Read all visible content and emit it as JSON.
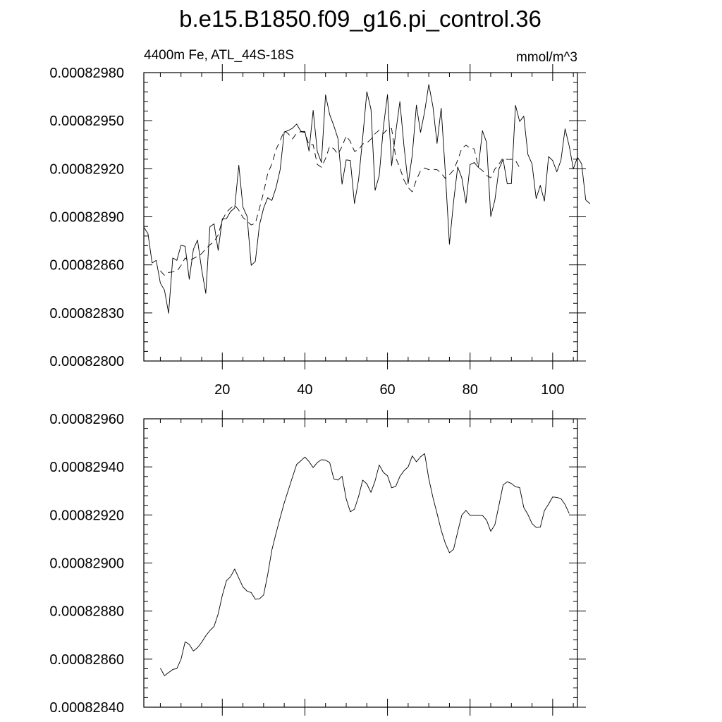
{
  "title": "b.e15.B1850.f09_g16.pi_control.36",
  "chart_data": [
    {
      "type": "line",
      "left_label": "4400m Fe, ATL_44S-18S",
      "units": "mmol/m^3",
      "xlim": [
        1,
        106
      ],
      "ylim": [
        0.000828,
        0.0008298
      ],
      "x_ticks": [
        20,
        40,
        60,
        80,
        100
      ],
      "x_tick_labels": [
        "20",
        "40",
        "60",
        "80",
        "100"
      ],
      "y_ticks": [
        0.000828,
        0.0008283,
        0.0008286,
        0.0008289,
        0.0008292,
        0.0008295,
        0.0008298
      ],
      "y_tick_labels": [
        "0.00082800",
        "0.00082830",
        "0.00082860",
        "0.00082890",
        "0.00082920",
        "0.00082950",
        "0.00082980"
      ],
      "grid": false,
      "series": [
        {
          "style": "solid",
          "x_start": 1,
          "values": [
            0.000828835,
            0.000828795,
            0.000828612,
            0.000828628,
            0.000828486,
            0.000828442,
            0.000828298,
            0.000828643,
            0.000828628,
            0.000828722,
            0.000828716,
            0.00082851,
            0.000828696,
            0.000828755,
            0.000828572,
            0.000828422,
            0.000828838,
            0.000828856,
            0.00082869,
            0.000828888,
            0.000828888,
            0.000828933,
            0.000828955,
            0.000829222,
            0.00082896,
            0.000828903,
            0.000828597,
            0.000828622,
            0.000828849,
            0.000828954,
            0.000829019,
            0.000829002,
            0.000829081,
            0.000829193,
            0.000829429,
            0.000829439,
            0.000829453,
            0.000829479,
            0.000829434,
            0.000829433,
            0.00082931,
            0.000829565,
            0.000829308,
            0.000829239,
            0.000829661,
            0.000829538,
            0.000829469,
            0.000829389,
            0.000829104,
            0.000829255,
            0.000829252,
            0.000828983,
            0.000829132,
            0.000829395,
            0.000829681,
            0.000829571,
            0.000829065,
            0.000829158,
            0.000829458,
            0.000829663,
            0.000829219,
            0.000829428,
            0.000829619,
            0.00082934,
            0.000829107,
            0.000829284,
            0.000829597,
            0.000829427,
            0.000829557,
            0.000829726,
            0.000829589,
            0.000829358,
            0.000829578,
            0.000829177,
            0.000828729,
            0.000828994,
            0.000829211,
            0.000829143,
            0.000828985,
            0.000829226,
            0.000829239,
            0.000829208,
            0.000829437,
            0.000829364,
            0.000828902,
            0.000829004,
            0.000829199,
            0.000829259,
            0.000829106,
            0.000829107,
            0.000829596,
            0.000829495,
            0.000829528,
            0.000829289,
            0.000829231,
            0.000829014,
            0.000829096,
            0.000828998,
            0.000829276,
            0.000829251,
            0.000829181,
            0.000829253,
            0.000829449,
            0.000829342,
            0.000829199,
            0.000829272,
            0.000829231,
            0.000829006,
            0.000828982
          ]
        },
        {
          "style": "dashed",
          "x_start": 5,
          "values": [
            0.000828563,
            0.000828535,
            0.000828553,
            0.000828556,
            0.00082856,
            0.000828596,
            0.000828643,
            0.000828624,
            0.00082864,
            0.000828653,
            0.00082867,
            0.0008287,
            0.000828725,
            0.000828745,
            0.000828787,
            0.000828878,
            0.000828929,
            0.000828954,
            0.000828973,
            0.000828941,
            0.000828896,
            0.000828873,
            0.000828849,
            0.00082886,
            0.000828953,
            0.000829052,
            0.000829171,
            0.000829229,
            0.000829318,
            0.000829376,
            0.000829436,
            0.000829418,
            0.000829386,
            0.000829422,
            0.000829431,
            0.000829427,
            0.000829347,
            0.00082935,
            0.000829227,
            0.000829209,
            0.000829264,
            0.00082934,
            0.000829325,
            0.00082929,
            0.000829339,
            0.000829405,
            0.00082937,
            0.000829309,
            0.000829317,
            0.000829355,
            0.000829361,
            0.000829385,
            0.000829419,
            0.000829441,
            0.000829419,
            0.000829447,
            0.000829451,
            0.000829268,
            0.000829205,
            0.000829129,
            0.000829082,
            0.000829056,
            0.000829131,
            0.000829187,
            0.000829205,
            0.000829194,
            0.000829197,
            0.000829194,
            0.000829173,
            0.000829139,
            0.000829163,
            0.000829191,
            0.000829254,
            0.000829328,
            0.000829347,
            0.000829329,
            0.000829324,
            0.000829209,
            0.000829188,
            0.000829158,
            0.000829144,
            0.000829198,
            0.00082923,
            0.000829268,
            0.000829258,
            0.000829259,
            0.000829252,
            0.000829206
          ]
        }
      ]
    },
    {
      "type": "line",
      "xlim": [
        1,
        106
      ],
      "ylim": [
        0.0008284,
        0.0008296
      ],
      "x_ticks": [
        20,
        40,
        60,
        80,
        100
      ],
      "y_ticks": [
        0.0008284,
        0.0008286,
        0.0008288,
        0.000829,
        0.0008292,
        0.0008294,
        0.0008296
      ],
      "y_tick_labels": [
        "0.00082840",
        "0.00082860",
        "0.00082880",
        "0.00082900",
        "0.00082920",
        "0.00082940",
        "0.00082960"
      ],
      "grid": false,
      "series": [
        {
          "style": "solid",
          "x_start": 5,
          "values": [
            0.000828562,
            0.000828531,
            0.000828544,
            0.000828557,
            0.000828561,
            0.000828599,
            0.000828672,
            0.000828661,
            0.000828634,
            0.000828648,
            0.00082867,
            0.000828697,
            0.000828719,
            0.000828736,
            0.000828788,
            0.000828865,
            0.000828926,
            0.000828943,
            0.000828975,
            0.000828937,
            0.0008289,
            0.000828883,
            0.000828877,
            0.000828849,
            0.000828851,
            0.000828867,
            0.000828952,
            0.000829054,
            0.000829123,
            0.000829188,
            0.00082925,
            0.000829304,
            0.000829358,
            0.00082941,
            0.000829425,
            0.000829441,
            0.000829422,
            0.000829397,
            0.000829418,
            0.00082943,
            0.000829428,
            0.000829418,
            0.00082935,
            0.000829345,
            0.000829361,
            0.000829267,
            0.000829213,
            0.000829224,
            0.000829277,
            0.000829345,
            0.000829329,
            0.000829294,
            0.000829342,
            0.000829408,
            0.000829377,
            0.000829363,
            0.000829313,
            0.000829319,
            0.00082936,
            0.000829384,
            0.0008294,
            0.000829446,
            0.000829421,
            0.000829442,
            0.000829455,
            0.000829351,
            0.000829273,
            0.000829206,
            0.000829137,
            0.000829082,
            0.000829043,
            0.000829057,
            0.00082913,
            0.000829199,
            0.000829219,
            0.000829198,
            0.000829198,
            0.000829198,
            0.000829198,
            0.000829178,
            0.000829132,
            0.000829159,
            0.000829241,
            0.000829325,
            0.000829338,
            0.000829331,
            0.000829317,
            0.000829314,
            0.000829231,
            0.000829202,
            0.000829164,
            0.000829148,
            0.000829149,
            0.000829218,
            0.000829245,
            0.000829275,
            0.000829273,
            0.000829268,
            0.000829243,
            0.000829206
          ]
        }
      ]
    }
  ]
}
